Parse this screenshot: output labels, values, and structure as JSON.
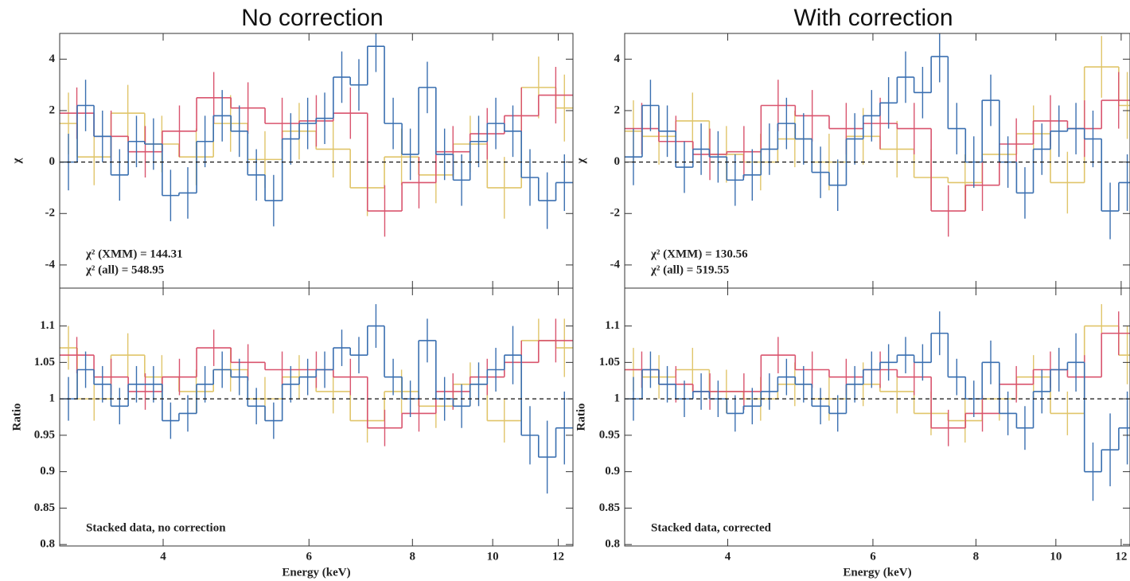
{
  "chart_data": [
    {
      "type": "step",
      "title": "No correction",
      "ylabel": "χ",
      "refline": 0,
      "xlim": [
        3,
        12.5
      ],
      "xticks": [
        4,
        6,
        8,
        10,
        12
      ],
      "xlog": true,
      "ylim": [
        -4.9,
        5
      ],
      "yticks": [
        -4,
        -2,
        0,
        2,
        4
      ],
      "annotations": [
        "χ² (XMM) = 144.31",
        "χ² (all) = 548.95"
      ],
      "series": [
        {
          "color": "#e0c56a",
          "bins": [
            3,
            3.15,
            3.46,
            3.8,
            4.18,
            4.6,
            5.06,
            5.57,
            6.12,
            6.73,
            7.4,
            8.14,
            8.96,
            9.85,
            10.83,
            11.92,
            12.5
          ],
          "values": [
            1.5,
            0.2,
            1.9,
            0.7,
            0.2,
            1.5,
            0.1,
            1.2,
            0.5,
            -1.0,
            0.2,
            -0.5,
            0.7,
            -1.0,
            2.9,
            2.1
          ],
          "errors": [
            1.2,
            1.1,
            1.1,
            1.1,
            1.1,
            1.1,
            1.1,
            1.1,
            1.1,
            1.1,
            1.1,
            1.1,
            1.1,
            1.2,
            1.2,
            1.3
          ]
        },
        {
          "color": "#d9546e",
          "bins": [
            3,
            3.3,
            3.63,
            3.99,
            4.39,
            4.83,
            5.31,
            5.84,
            6.42,
            7.06,
            7.77,
            8.54,
            9.39,
            10.33,
            11.36,
            12.5
          ],
          "values": [
            1.9,
            1.0,
            0.4,
            1.2,
            2.5,
            2.1,
            1.5,
            1.6,
            1.9,
            -1.9,
            -0.8,
            0.4,
            1.1,
            1.8,
            2.6
          ],
          "errors": [
            1.0,
            1.0,
            1.0,
            1.0,
            1.0,
            1.0,
            1.0,
            1.0,
            1.0,
            1.0,
            1.0,
            1.0,
            1.0,
            1.1,
            1.1
          ]
        },
        {
          "color": "#3a6fb0",
          "bins": [
            3,
            3.15,
            3.3,
            3.46,
            3.63,
            3.8,
            3.99,
            4.18,
            4.39,
            4.6,
            4.83,
            5.06,
            5.31,
            5.57,
            5.84,
            6.12,
            6.42,
            6.73,
            7.06,
            7.4,
            7.77,
            8.14,
            8.54,
            8.96,
            9.39,
            9.85,
            10.33,
            10.83,
            11.36,
            11.92,
            12.5
          ],
          "values": [
            0.0,
            2.2,
            1.0,
            -0.5,
            0.8,
            0.7,
            -1.3,
            -1.2,
            0.8,
            1.8,
            1.2,
            -0.5,
            -1.5,
            0.9,
            1.5,
            1.7,
            3.3,
            3.0,
            4.5,
            1.5,
            0.3,
            2.9,
            0.3,
            -0.7,
            0.8,
            1.5,
            1.2,
            -0.6,
            -1.5,
            -0.8
          ],
          "errors": [
            1.1,
            1.0,
            1.0,
            1.0,
            1.0,
            1.0,
            1.0,
            1.0,
            1.0,
            1.0,
            1.0,
            1.0,
            1.0,
            1.0,
            1.0,
            1.0,
            1.0,
            1.0,
            1.0,
            1.0,
            1.0,
            1.0,
            1.0,
            1.0,
            1.0,
            1.0,
            1.0,
            1.1,
            1.1,
            1.1
          ]
        }
      ]
    },
    {
      "type": "step",
      "xlabel": "Energy (keV)",
      "ylabel": "Ratio",
      "refline": 1,
      "xlim": [
        3,
        12.5
      ],
      "xticks": [
        4,
        6,
        8,
        10,
        12
      ],
      "xlog": true,
      "ylim": [
        0.798,
        1.152
      ],
      "yticks": [
        0.8,
        0.85,
        0.9,
        0.95,
        1,
        1.05,
        1.1
      ],
      "annotations": [
        "Stacked data, no correction"
      ],
      "series": [
        {
          "color": "#e0c56a",
          "bins": [
            3,
            3.15,
            3.46,
            3.8,
            4.18,
            4.6,
            5.06,
            5.57,
            6.12,
            6.73,
            7.4,
            8.14,
            8.96,
            9.85,
            10.83,
            11.92,
            12.5
          ],
          "values": [
            1.07,
            1.0,
            1.06,
            1.03,
            1.01,
            1.04,
            1.0,
            1.03,
            1.01,
            0.97,
            1.01,
            0.99,
            1.02,
            0.97,
            1.08,
            1.07
          ],
          "errors": [
            0.03,
            0.03,
            0.03,
            0.03,
            0.03,
            0.03,
            0.03,
            0.03,
            0.03,
            0.03,
            0.03,
            0.03,
            0.03,
            0.03,
            0.03,
            0.04
          ]
        },
        {
          "color": "#d9546e",
          "bins": [
            3,
            3.3,
            3.63,
            3.99,
            4.39,
            4.83,
            5.31,
            5.84,
            6.42,
            7.06,
            7.77,
            8.54,
            9.39,
            10.33,
            11.36,
            12.5
          ],
          "values": [
            1.06,
            1.03,
            1.01,
            1.03,
            1.07,
            1.05,
            1.04,
            1.04,
            1.03,
            0.96,
            0.98,
            1.01,
            1.03,
            1.05,
            1.08
          ],
          "errors": [
            0.025,
            0.025,
            0.025,
            0.025,
            0.025,
            0.025,
            0.025,
            0.025,
            0.025,
            0.025,
            0.025,
            0.025,
            0.025,
            0.03,
            0.03
          ]
        },
        {
          "color": "#3a6fb0",
          "bins": [
            3,
            3.15,
            3.3,
            3.46,
            3.63,
            3.8,
            3.99,
            4.18,
            4.39,
            4.6,
            4.83,
            5.06,
            5.31,
            5.57,
            5.84,
            6.12,
            6.42,
            6.73,
            7.06,
            7.4,
            7.77,
            8.14,
            8.54,
            8.96,
            9.39,
            9.85,
            10.33,
            10.83,
            11.36,
            11.92,
            12.5
          ],
          "values": [
            1.0,
            1.04,
            1.02,
            0.99,
            1.02,
            1.02,
            0.97,
            0.98,
            1.02,
            1.04,
            1.03,
            0.99,
            0.97,
            1.02,
            1.03,
            1.04,
            1.07,
            1.06,
            1.1,
            1.03,
            1.0,
            1.08,
            1.0,
            0.99,
            1.02,
            1.04,
            1.06,
            0.95,
            0.92,
            0.96
          ],
          "errors": [
            0.03,
            0.025,
            0.025,
            0.025,
            0.025,
            0.025,
            0.025,
            0.025,
            0.025,
            0.025,
            0.025,
            0.025,
            0.025,
            0.025,
            0.025,
            0.025,
            0.025,
            0.025,
            0.03,
            0.025,
            0.025,
            0.03,
            0.03,
            0.03,
            0.03,
            0.03,
            0.04,
            0.04,
            0.05,
            0.05
          ]
        }
      ]
    },
    {
      "type": "step",
      "title": "With correction",
      "ylabel": "χ",
      "refline": 0,
      "xlim": [
        3,
        12.3
      ],
      "xticks": [
        4,
        6,
        8,
        10,
        12
      ],
      "xlog": true,
      "ylim": [
        -4.9,
        5
      ],
      "yticks": [
        -4,
        -2,
        0,
        2,
        4
      ],
      "annotations": [
        "χ² (XMM) = 130.56",
        "χ² (all) = 519.55"
      ],
      "series": [
        {
          "color": "#e0c56a",
          "bins": [
            3,
            3.15,
            3.46,
            3.8,
            4.18,
            4.6,
            5.06,
            5.57,
            6.12,
            6.73,
            7.4,
            8.14,
            8.96,
            9.85,
            10.83,
            11.92,
            12.5
          ],
          "values": [
            1.2,
            1.0,
            1.6,
            0.3,
            0.0,
            0.9,
            0.0,
            1.0,
            0.5,
            -0.6,
            -0.8,
            0.3,
            1.1,
            -0.8,
            3.7,
            2.2
          ],
          "errors": [
            1.2,
            1.1,
            1.1,
            1.1,
            1.1,
            1.1,
            1.1,
            1.1,
            1.1,
            1.1,
            1.1,
            1.1,
            1.1,
            1.2,
            1.2,
            1.3
          ]
        },
        {
          "color": "#d9546e",
          "bins": [
            3,
            3.3,
            3.63,
            3.99,
            4.39,
            4.83,
            5.31,
            5.84,
            6.42,
            7.06,
            7.77,
            8.54,
            9.39,
            10.33,
            11.36,
            12.5
          ],
          "values": [
            1.3,
            0.8,
            0.3,
            0.4,
            2.2,
            1.8,
            1.3,
            1.5,
            1.3,
            -1.9,
            -0.9,
            0.7,
            1.6,
            1.3,
            2.4
          ],
          "errors": [
            1.0,
            1.0,
            1.0,
            1.0,
            1.0,
            1.0,
            1.0,
            1.0,
            1.0,
            1.0,
            1.0,
            1.0,
            1.0,
            1.1,
            1.1
          ]
        },
        {
          "color": "#3a6fb0",
          "bins": [
            3,
            3.15,
            3.3,
            3.46,
            3.63,
            3.8,
            3.99,
            4.18,
            4.39,
            4.6,
            4.83,
            5.06,
            5.31,
            5.57,
            5.84,
            6.12,
            6.42,
            6.73,
            7.06,
            7.4,
            7.77,
            8.14,
            8.54,
            8.96,
            9.39,
            9.85,
            10.33,
            10.83,
            11.36,
            11.92,
            12.5
          ],
          "values": [
            0.2,
            2.2,
            1.2,
            -0.2,
            0.5,
            0.2,
            -0.7,
            -0.5,
            0.5,
            1.5,
            0.9,
            -0.4,
            -0.9,
            0.9,
            1.8,
            2.3,
            3.3,
            2.7,
            4.1,
            1.3,
            0.0,
            2.4,
            0.0,
            -1.2,
            0.5,
            1.2,
            1.3,
            0.9,
            -1.9,
            -0.8
          ],
          "errors": [
            1.1,
            1.0,
            1.0,
            1.0,
            1.0,
            1.0,
            1.0,
            1.0,
            1.0,
            1.0,
            1.0,
            1.0,
            1.0,
            1.0,
            1.0,
            1.0,
            1.0,
            1.0,
            1.0,
            1.0,
            1.0,
            1.0,
            1.0,
            1.0,
            1.0,
            1.0,
            1.0,
            1.1,
            1.1,
            1.1
          ]
        }
      ]
    },
    {
      "type": "step",
      "xlabel": "Energy (keV)",
      "ylabel": "Ratio",
      "refline": 1,
      "xlim": [
        3,
        12.3
      ],
      "xticks": [
        4,
        6,
        8,
        10,
        12
      ],
      "xlog": true,
      "ylim": [
        0.798,
        1.152
      ],
      "yticks": [
        0.8,
        0.85,
        0.9,
        0.95,
        1,
        1.05,
        1.1
      ],
      "annotations": [
        "Stacked data, corrected"
      ],
      "series": [
        {
          "color": "#e0c56a",
          "bins": [
            3,
            3.15,
            3.46,
            3.8,
            4.18,
            4.6,
            5.06,
            5.57,
            6.12,
            6.73,
            7.4,
            8.14,
            8.96,
            9.85,
            10.83,
            11.92,
            12.5
          ],
          "values": [
            1.04,
            1.03,
            1.04,
            1.01,
            1.0,
            1.02,
            1.0,
            1.02,
            1.01,
            0.98,
            0.97,
            1.0,
            1.03,
            0.98,
            1.1,
            1.06
          ],
          "errors": [
            0.03,
            0.03,
            0.03,
            0.03,
            0.03,
            0.03,
            0.03,
            0.03,
            0.03,
            0.03,
            0.03,
            0.03,
            0.03,
            0.03,
            0.03,
            0.04
          ]
        },
        {
          "color": "#d9546e",
          "bins": [
            3,
            3.3,
            3.63,
            3.99,
            4.39,
            4.83,
            5.31,
            5.84,
            6.42,
            7.06,
            7.77,
            8.54,
            9.39,
            10.33,
            11.36,
            12.5
          ],
          "values": [
            1.04,
            1.02,
            1.01,
            1.01,
            1.06,
            1.04,
            1.03,
            1.04,
            1.03,
            0.96,
            0.98,
            1.02,
            1.04,
            1.03,
            1.09
          ],
          "errors": [
            0.025,
            0.025,
            0.025,
            0.025,
            0.025,
            0.025,
            0.025,
            0.025,
            0.025,
            0.025,
            0.025,
            0.025,
            0.025,
            0.03,
            0.03
          ]
        },
        {
          "color": "#3a6fb0",
          "bins": [
            3,
            3.15,
            3.3,
            3.46,
            3.63,
            3.8,
            3.99,
            4.18,
            4.39,
            4.6,
            4.83,
            5.06,
            5.31,
            5.57,
            5.84,
            6.12,
            6.42,
            6.73,
            7.06,
            7.4,
            7.77,
            8.14,
            8.54,
            8.96,
            9.39,
            9.85,
            10.33,
            10.83,
            11.36,
            11.92,
            12.5
          ],
          "values": [
            1.0,
            1.04,
            1.02,
            1.0,
            1.01,
            1.0,
            0.98,
            0.99,
            1.01,
            1.03,
            1.02,
            0.99,
            0.98,
            1.02,
            1.04,
            1.05,
            1.06,
            1.05,
            1.09,
            1.03,
            1.0,
            1.05,
            0.98,
            0.96,
            1.01,
            1.04,
            1.05,
            0.9,
            0.93,
            0.96
          ],
          "errors": [
            0.03,
            0.025,
            0.025,
            0.025,
            0.025,
            0.025,
            0.025,
            0.025,
            0.025,
            0.025,
            0.025,
            0.025,
            0.025,
            0.025,
            0.025,
            0.025,
            0.025,
            0.025,
            0.03,
            0.025,
            0.025,
            0.03,
            0.03,
            0.03,
            0.03,
            0.03,
            0.04,
            0.04,
            0.05,
            0.05
          ]
        }
      ]
    }
  ]
}
